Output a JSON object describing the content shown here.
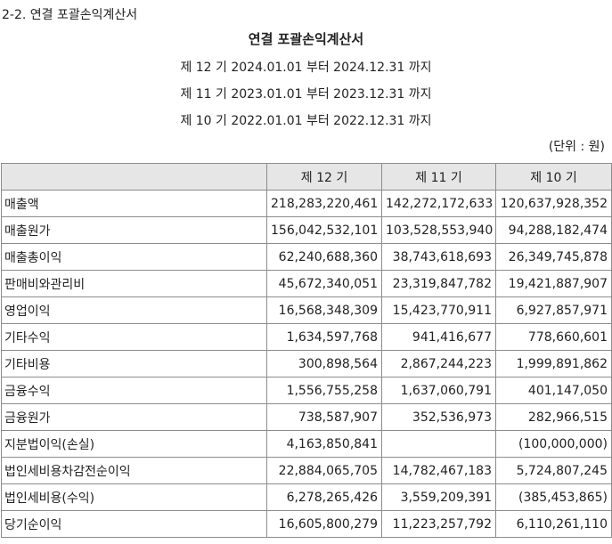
{
  "section_title": "2-2. 연결 포괄손익계산서",
  "doc_title": "연결 포괄손익계산서",
  "periods": [
    "제 12 기 2024.01.01 부터 2024.12.31 까지",
    "제 11 기 2023.01.01 부터 2023.12.31 까지",
    "제 10 기 2022.01.01 부터 2022.12.31 까지"
  ],
  "unit": "(단위 : 원)",
  "table": {
    "headers": [
      "",
      "제 12 기",
      "제 11 기",
      "제 10 기"
    ],
    "rows": [
      {
        "label": "매출액",
        "values": [
          "218,283,220,461",
          "142,272,172,633",
          "120,637,928,352"
        ]
      },
      {
        "label": "매출원가",
        "values": [
          "156,042,532,101",
          "103,528,553,940",
          "94,288,182,474"
        ]
      },
      {
        "label": "매출총이익",
        "values": [
          "62,240,688,360",
          "38,743,618,693",
          "26,349,745,878"
        ]
      },
      {
        "label": "판매비와관리비",
        "values": [
          "45,672,340,051",
          "23,319,847,782",
          "19,421,887,907"
        ]
      },
      {
        "label": "영업이익",
        "values": [
          "16,568,348,309",
          "15,423,770,911",
          "6,927,857,971"
        ]
      },
      {
        "label": "기타수익",
        "values": [
          "1,634,597,768",
          "941,416,677",
          "778,660,601"
        ]
      },
      {
        "label": "기타비용",
        "values": [
          "300,898,564",
          "2,867,244,223",
          "1,999,891,862"
        ]
      },
      {
        "label": "금융수익",
        "values": [
          "1,556,755,258",
          "1,637,060,791",
          "401,147,050"
        ]
      },
      {
        "label": "금융원가",
        "values": [
          "738,587,907",
          "352,536,973",
          "282,966,515"
        ]
      },
      {
        "label": "지분법이익(손실)",
        "values": [
          "4,163,850,841",
          "",
          "(100,000,000)"
        ]
      },
      {
        "label": "법인세비용차감전순이익",
        "values": [
          "22,884,065,705",
          "14,782,467,183",
          "5,724,807,245"
        ]
      },
      {
        "label": "법인세비용(수익)",
        "values": [
          "6,278,265,426",
          "3,559,209,391",
          "(385,453,865)"
        ]
      },
      {
        "label": "당기순이익",
        "values": [
          "16,605,800,279",
          "11,223,257,792",
          "6,110,261,110"
        ]
      }
    ]
  }
}
